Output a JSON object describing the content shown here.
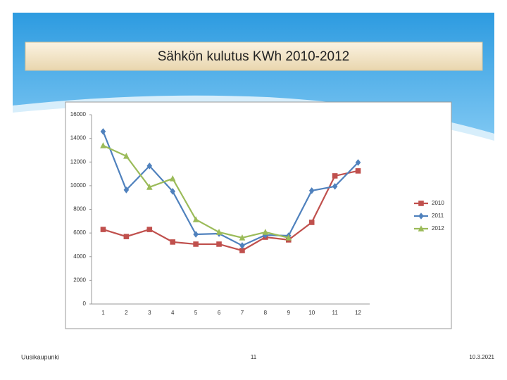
{
  "chart_data": {
    "type": "line",
    "title": "Sähkön kulutus KWh 2010-2012",
    "categories": [
      "1",
      "2",
      "3",
      "4",
      "5",
      "6",
      "7",
      "8",
      "9",
      "10",
      "11",
      "12"
    ],
    "series": [
      {
        "name": "2010",
        "color": "#c0504d",
        "marker": "square",
        "values": [
          6300,
          5700,
          6300,
          5240,
          5060,
          5060,
          4520,
          5650,
          5420,
          6900,
          10830,
          11250
        ]
      },
      {
        "name": "2011",
        "color": "#4f81bd",
        "marker": "diamond",
        "values": [
          14580,
          9640,
          11670,
          9520,
          5890,
          5950,
          4940,
          5830,
          5770,
          9580,
          9940,
          11960
        ]
      },
      {
        "name": "2012",
        "color": "#9bbb59",
        "marker": "triangle",
        "values": [
          13390,
          12500,
          9880,
          10600,
          7140,
          6070,
          5600,
          6070,
          5600,
          null,
          null,
          null
        ]
      }
    ],
    "ylim": [
      0,
      16000
    ],
    "yticks": [
      0,
      2000,
      4000,
      6000,
      8000,
      10000,
      12000,
      14000,
      16000
    ],
    "grid": false,
    "legend": "right"
  },
  "footer": {
    "left": "Uusikaupunki",
    "center": "11",
    "right": "10.3.2021"
  }
}
